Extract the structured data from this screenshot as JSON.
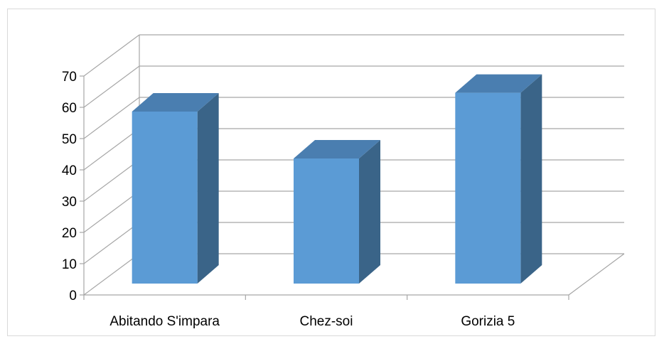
{
  "chart_data": {
    "type": "bar",
    "style": "3d-column",
    "categories": [
      "Abitando S'impara",
      "Chez-soi",
      "Gorizia 5"
    ],
    "series": [
      {
        "values": [
          55,
          40,
          61
        ]
      }
    ],
    "ylim": [
      0,
      70
    ],
    "y_ticks": [
      "0",
      "10",
      "20",
      "30",
      "40",
      "50",
      "60",
      "70"
    ],
    "grid": true,
    "legend": "none",
    "colors": {
      "bar_front": "#5b9bd5",
      "bar_side": "#3a6488",
      "bar_top": "#4a7eb0",
      "grid": "#a6a6a6"
    }
  }
}
